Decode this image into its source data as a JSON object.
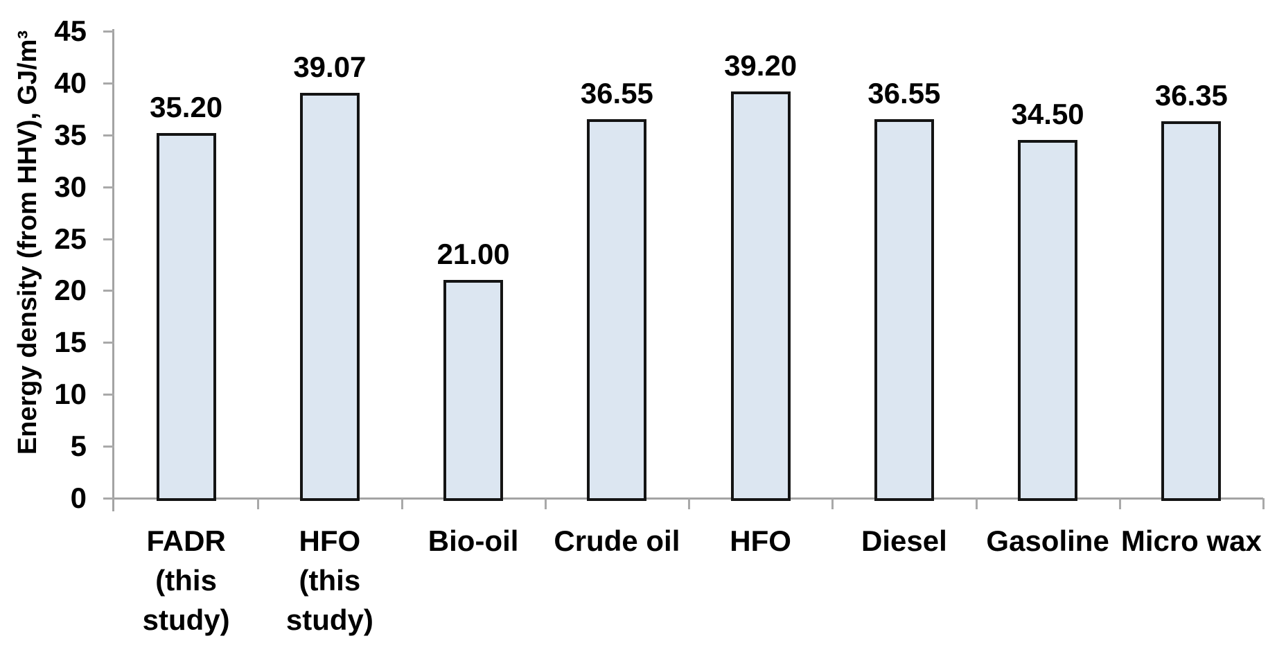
{
  "chart_data": {
    "type": "bar",
    "title": "",
    "xlabel": "",
    "ylabel": "Energy density (from HHV), GJ/m³",
    "ylim": [
      0,
      45
    ],
    "yticks": [
      0,
      5,
      10,
      15,
      20,
      25,
      30,
      35,
      40,
      45
    ],
    "grid": false,
    "legend": "none",
    "categories": [
      "FADR\n(this\nstudy)",
      "HFO\n(this\nstudy)",
      "Bio-oil",
      "Crude oil",
      "HFO",
      "Diesel",
      "Gasoline",
      "Micro wax"
    ],
    "values": [
      35.2,
      39.07,
      21.0,
      36.55,
      39.2,
      36.55,
      34.5,
      36.35
    ],
    "value_labels": [
      "35.20",
      "39.07",
      "21.00",
      "36.55",
      "39.20",
      "36.55",
      "34.50",
      "36.35"
    ],
    "colors": {
      "bar_fill": "#dce6f1",
      "bar_border": "#141414",
      "axis": "#a3a3a3",
      "text": "#000000",
      "background": "#ffffff"
    }
  }
}
